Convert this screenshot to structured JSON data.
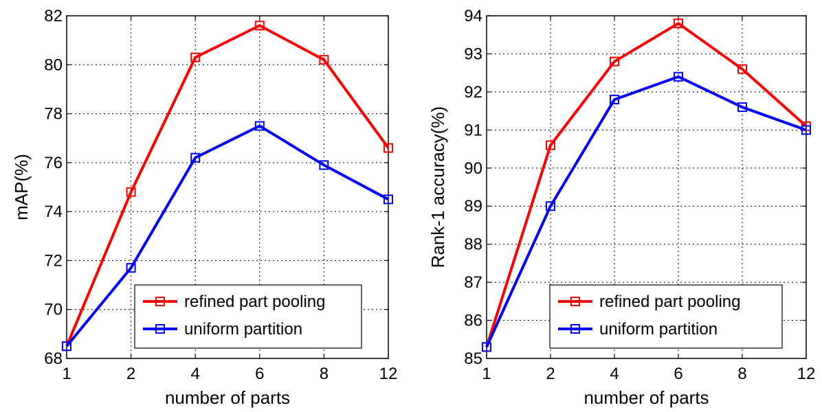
{
  "chart_data": [
    {
      "type": "line",
      "categories": [
        "1",
        "2",
        "4",
        "6",
        "8",
        "12"
      ],
      "xlabel": "number of parts",
      "ylabel": "mAP(%)",
      "ylim": [
        68,
        82
      ],
      "yticks": [
        "68",
        "70",
        "72",
        "74",
        "76",
        "78",
        "80",
        "82"
      ],
      "grid": true,
      "legend_position": "lower-right",
      "series": [
        {
          "name": "refined part pooling",
          "color": "#ff0000",
          "values": [
            68.5,
            74.8,
            80.3,
            81.6,
            80.2,
            76.6
          ]
        },
        {
          "name": "uniform partition",
          "color": "#0000ff",
          "values": [
            68.5,
            71.7,
            76.2,
            77.5,
            75.9,
            74.5
          ]
        }
      ]
    },
    {
      "type": "line",
      "categories": [
        "1",
        "2",
        "4",
        "6",
        "8",
        "12"
      ],
      "xlabel": "number of parts",
      "ylabel": "Rank-1 accuracy(%)",
      "ylim": [
        85,
        94
      ],
      "yticks": [
        "85",
        "86",
        "87",
        "88",
        "89",
        "90",
        "91",
        "92",
        "93",
        "94"
      ],
      "grid": true,
      "legend_position": "lower-right",
      "series": [
        {
          "name": "refined part pooling",
          "color": "#ff0000",
          "values": [
            85.3,
            90.6,
            92.8,
            93.8,
            92.6,
            91.1
          ]
        },
        {
          "name": "uniform partition",
          "color": "#0000ff",
          "values": [
            85.3,
            89.0,
            91.8,
            92.4,
            91.6,
            91.0
          ]
        }
      ]
    }
  ]
}
